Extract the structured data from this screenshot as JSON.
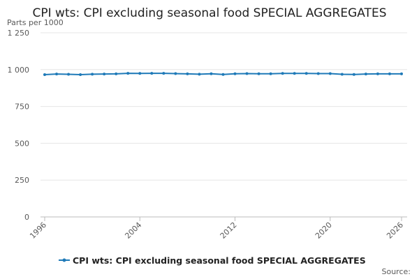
{
  "chart_data": {
    "type": "line",
    "title": "CPI wts: CPI excluding seasonal food SPECIAL AGGREGATES",
    "y_label": "Parts per 1000",
    "source": "Source:",
    "x": [
      1996,
      1997,
      1998,
      1999,
      2000,
      2001,
      2002,
      2003,
      2004,
      2005,
      2006,
      2007,
      2008,
      2009,
      2010,
      2011,
      2012,
      2013,
      2014,
      2015,
      2016,
      2017,
      2018,
      2019,
      2020,
      2021,
      2022,
      2023,
      2024,
      2025,
      2026
    ],
    "xlim": [
      1996,
      2026
    ],
    "xticks": [
      1996,
      2004,
      2012,
      2020,
      2026
    ],
    "ylim": [
      0,
      1250
    ],
    "yticks": [
      0,
      250,
      500,
      750,
      {
        "value": 1000,
        "label": "1 000"
      },
      {
        "value": 1250,
        "label": "1 250"
      }
    ],
    "grid": true,
    "series": [
      {
        "name": "CPI wts: CPI excluding seasonal food SPECIAL AGGREGATES",
        "color": "#1f7ab8",
        "values": [
          966,
          970,
          968,
          966,
          969,
          970,
          971,
          975,
          974,
          975,
          975,
          973,
          971,
          969,
          972,
          967,
          972,
          973,
          972,
          972,
          974,
          974,
          974,
          973,
          973,
          968,
          967,
          970,
          971,
          971,
          971
        ]
      }
    ]
  }
}
